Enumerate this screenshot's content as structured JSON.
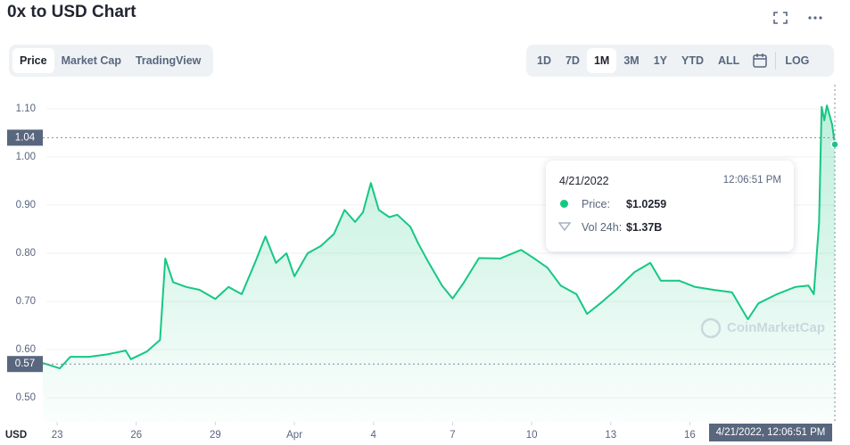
{
  "ui": {
    "tabs": [
      "Price",
      "Market Cap",
      "TradingView"
    ],
    "ranges": [
      "1D",
      "7D",
      "1M",
      "3M",
      "1Y",
      "YTD",
      "ALL"
    ],
    "log_button": "LOG",
    "watermark": "CoinMarketCap",
    "tooltip": {
      "date": "4/21/2022",
      "time": "12:06:51 PM",
      "price_label": "Price:",
      "price": "$1.0259",
      "volume_label": "Vol 24h:",
      "volume": "$1.37B"
    },
    "hover_label": "4/21/2022, 12:06:51 PM"
  },
  "chart_data": {
    "type": "line",
    "title": "0x to USD Chart",
    "y_label": "USD",
    "x": [
      22.46,
      23.1,
      23.5,
      24.2,
      24.9,
      25.6,
      25.8,
      26.4,
      26.9,
      27.1,
      27.4,
      27.9,
      28.4,
      29,
      29.5,
      30,
      30.5,
      30.9,
      31.3,
      31.7,
      32,
      32.5,
      33,
      33.5,
      33.9,
      34.3,
      34.6,
      34.9,
      35.2,
      35.6,
      35.9,
      36.4,
      36.7,
      37.1,
      37.6,
      38,
      38.4,
      39,
      39.8,
      40.6,
      41.1,
      41.6,
      42.1,
      42.7,
      43.1,
      43.6,
      44.2,
      44.9,
      45.5,
      45.9,
      46.6,
      47.2,
      47.9,
      48.6,
      49.2,
      49.6,
      50.3,
      51,
      51.5,
      51.7,
      51.9,
      52,
      52.1,
      52.2,
      52.4,
      52.5
    ],
    "series": [
      {
        "name": "Price",
        "color": "#16c784",
        "values": [
          0.572,
          0.561,
          0.585,
          0.585,
          0.59,
          0.598,
          0.58,
          0.596,
          0.62,
          0.789,
          0.74,
          0.73,
          0.724,
          0.705,
          0.73,
          0.715,
          0.78,
          0.835,
          0.78,
          0.8,
          0.752,
          0.8,
          0.815,
          0.84,
          0.89,
          0.865,
          0.885,
          0.946,
          0.89,
          0.875,
          0.88,
          0.855,
          0.82,
          0.78,
          0.733,
          0.706,
          0.737,
          0.79,
          0.789,
          0.807,
          0.789,
          0.77,
          0.733,
          0.715,
          0.674,
          0.696,
          0.724,
          0.761,
          0.78,
          0.743,
          0.743,
          0.73,
          0.724,
          0.719,
          0.663,
          0.696,
          0.715,
          0.73,
          0.733,
          0.715,
          0.863,
          1.104,
          1.076,
          1.107,
          1.067,
          1.026
        ]
      }
    ],
    "xlim": [
      21.17,
      52.5
    ],
    "xticks": [
      23,
      26,
      29,
      {
        "value": 32,
        "label": "Apr"
      },
      {
        "value": 35,
        "label": "4"
      },
      {
        "value": 38,
        "label": "7"
      },
      {
        "value": 41,
        "label": "10"
      },
      {
        "value": 44,
        "label": "13"
      },
      {
        "value": 47,
        "label": "16"
      }
    ],
    "ylim": [
      0.45,
      1.15
    ],
    "yticks": [
      {
        "value": 0.5,
        "label": "0.50"
      },
      {
        "value": 0.6,
        "label": "0.60"
      },
      {
        "value": 0.7,
        "label": "0.70"
      },
      {
        "value": 0.8,
        "label": "0.80"
      },
      {
        "value": 0.9,
        "label": "0.90"
      },
      {
        "value": 1,
        "label": "1.00"
      },
      {
        "value": 1.1,
        "label": "1.10"
      }
    ],
    "reference_lines": [
      1.04,
      0.57
    ],
    "grid": true
  }
}
